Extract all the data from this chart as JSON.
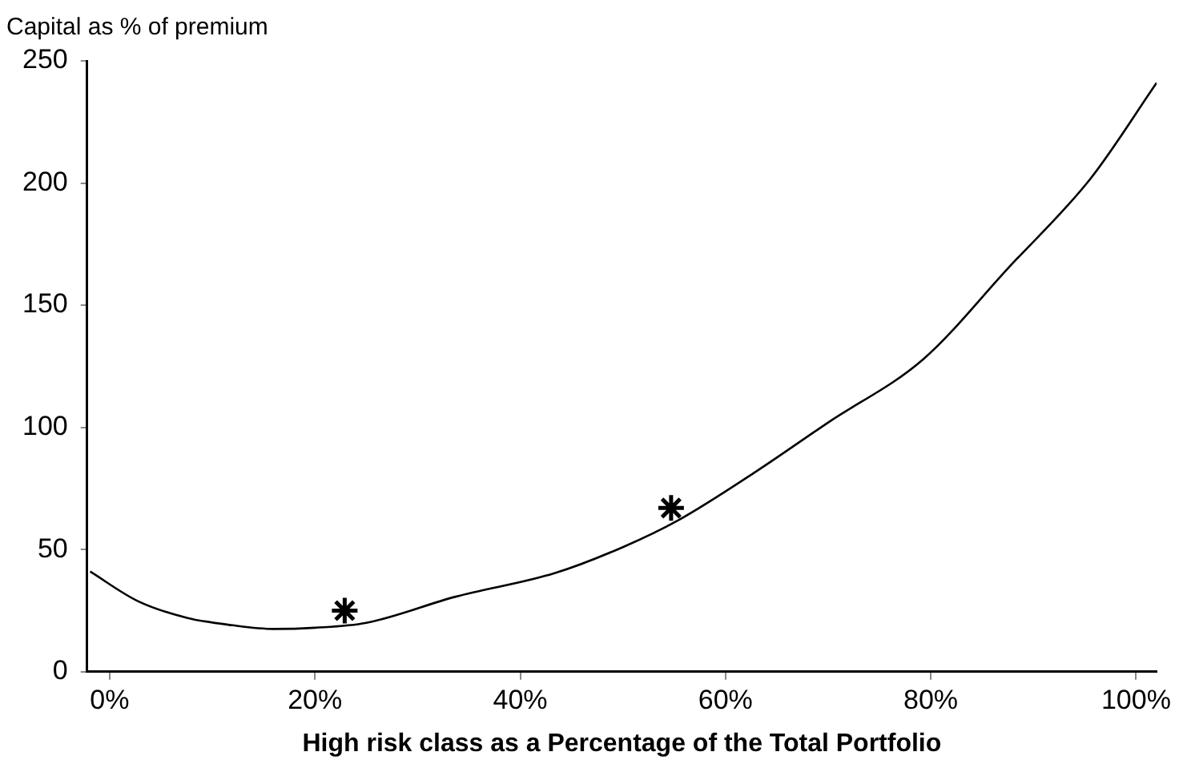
{
  "chart_data": {
    "type": "line",
    "xlabel": "High risk class as a Percentage of the Total Portfolio",
    "ylabel": "Capital as % of premium",
    "xlim": [
      -2.2,
      102
    ],
    "ylim": [
      0,
      250
    ],
    "xticks": [
      {
        "value": 0,
        "label": "0%"
      },
      {
        "value": 20,
        "label": "20%"
      },
      {
        "value": 40,
        "label": "40%"
      },
      {
        "value": 60,
        "label": "60%"
      },
      {
        "value": 80,
        "label": "80%"
      },
      {
        "value": 100,
        "label": "100%"
      }
    ],
    "yticks": [
      0,
      50,
      100,
      150,
      200,
      250
    ],
    "grid": false,
    "legend": false,
    "series": [
      {
        "color": "#000000",
        "marker": "none",
        "line_style": "solid",
        "x": [
          -1.9,
          2.7,
          7.6,
          12,
          16,
          20,
          25,
          33.7,
          43.4,
          50,
          55.4,
          63,
          70,
          79.3,
          87.5,
          95.6,
          102
        ],
        "values": [
          41,
          29,
          22,
          19,
          17.5,
          18,
          20,
          30.7,
          40.4,
          51,
          62,
          82,
          102,
          128,
          165,
          202,
          241
        ]
      },
      {
        "type": "scatter",
        "color": "#000000",
        "marker": "cross",
        "x": [
          22.9,
          54.7
        ],
        "values": [
          25,
          67
        ]
      }
    ]
  }
}
